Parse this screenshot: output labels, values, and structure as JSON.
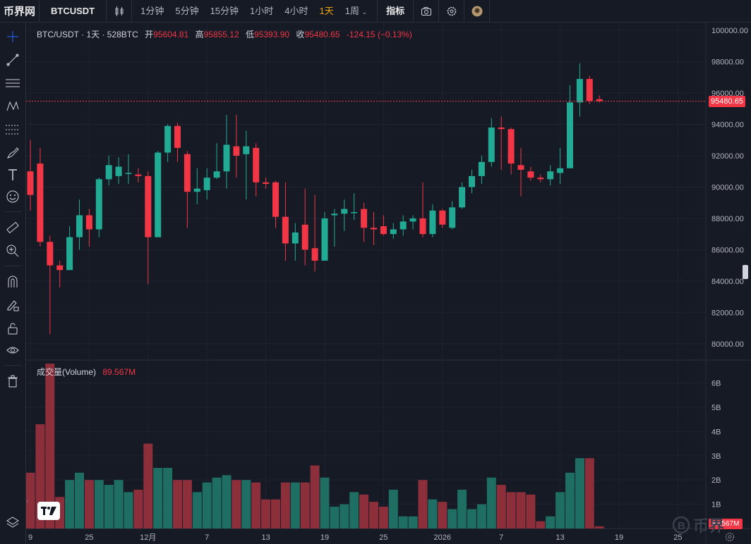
{
  "topbar": {
    "logo": "币界网",
    "symbol": "BTCUSDT",
    "intervals": [
      "1分钟",
      "5分钟",
      "15分钟",
      "1小时",
      "4小时",
      "1天",
      "1周"
    ],
    "active_interval": "1天",
    "indicators_label": "指标"
  },
  "legend": {
    "symbol": "BTC/USDT · 1天 · 528BTC",
    "open_label": "开",
    "open": "95604.81",
    "high_label": "高",
    "high": "95855.12",
    "low_label": "低",
    "low": "95393.90",
    "close_label": "收",
    "close": "95480.65",
    "change": "-124.15 (−0.13%)"
  },
  "volume_legend": {
    "label": "成交量(Volume)",
    "value": "89.567M"
  },
  "price_badge": "95480.65",
  "volume_badge": "89.567M",
  "watermark": "币界",
  "colors": {
    "up": "#22ab94",
    "down": "#f23645",
    "vol_up": "#1e6e63",
    "vol_down": "#8c2f3b",
    "bg": "#161a25",
    "grid": "#2a2e39"
  },
  "chart_data": {
    "type": "candlestick",
    "title": "BTC/USDT · 1天 · 528BTC",
    "price_axis": {
      "min": 79000,
      "max": 100500,
      "ticks": [
        "100000.00",
        "98000.00",
        "96000.00",
        "94000.00",
        "92000.00",
        "90000.00",
        "88000.00",
        "86000.00",
        "84000.00",
        "82000.00",
        "80000.00"
      ]
    },
    "volume_axis": {
      "min": 0,
      "max": 6.8,
      "unit": "B",
      "ticks": [
        "6B",
        "5B",
        "4B",
        "3B",
        "2B",
        "1B"
      ]
    },
    "x_ticks": [
      {
        "label": "9",
        "index": 0
      },
      {
        "label": "25",
        "index": 6
      },
      {
        "label": "12月",
        "index": 12
      },
      {
        "label": "7",
        "index": 18
      },
      {
        "label": "13",
        "index": 24
      },
      {
        "label": "19",
        "index": 30
      },
      {
        "label": "25",
        "index": 36
      },
      {
        "label": "2026",
        "index": 42
      },
      {
        "label": "7",
        "index": 48
      },
      {
        "label": "13",
        "index": 54
      },
      {
        "label": "19",
        "index": 60
      },
      {
        "label": "25",
        "index": 66
      }
    ],
    "candles": [
      {
        "o": 91000,
        "h": 93000,
        "l": 88500,
        "c": 89500,
        "v": 2.3
      },
      {
        "o": 91500,
        "h": 92500,
        "l": 86200,
        "c": 86500,
        "v": 4.3
      },
      {
        "o": 86500,
        "h": 86900,
        "l": 80600,
        "c": 85000,
        "v": 6.8
      },
      {
        "o": 85000,
        "h": 85300,
        "l": 83600,
        "c": 84700,
        "v": 1.3
      },
      {
        "o": 84700,
        "h": 87500,
        "l": 84700,
        "c": 86800,
        "v": 2.0
      },
      {
        "o": 86800,
        "h": 89200,
        "l": 86000,
        "c": 88200,
        "v": 2.3
      },
      {
        "o": 88200,
        "h": 88600,
        "l": 86200,
        "c": 87300,
        "v": 2.0
      },
      {
        "o": 87300,
        "h": 90600,
        "l": 86800,
        "c": 90500,
        "v": 2.0
      },
      {
        "o": 90500,
        "h": 92000,
        "l": 90100,
        "c": 91400,
        "v": 1.8
      },
      {
        "o": 90700,
        "h": 91900,
        "l": 90200,
        "c": 91300,
        "v": 2.0
      },
      {
        "o": 90900,
        "h": 92100,
        "l": 90200,
        "c": 90900,
        "v": 1.5
      },
      {
        "o": 90800,
        "h": 91200,
        "l": 90300,
        "c": 90700,
        "v": 1.6
      },
      {
        "o": 90700,
        "h": 91000,
        "l": 83800,
        "c": 86800,
        "v": 3.5
      },
      {
        "o": 86800,
        "h": 92300,
        "l": 86800,
        "c": 92200,
        "v": 2.5
      },
      {
        "o": 92200,
        "h": 94000,
        "l": 91600,
        "c": 93900,
        "v": 2.5
      },
      {
        "o": 93900,
        "h": 94100,
        "l": 91600,
        "c": 92500,
        "v": 2.0
      },
      {
        "o": 92100,
        "h": 92300,
        "l": 87400,
        "c": 89700,
        "v": 2.0
      },
      {
        "o": 89700,
        "h": 91200,
        "l": 88900,
        "c": 89900,
        "v": 1.5
      },
      {
        "o": 89800,
        "h": 91200,
        "l": 89200,
        "c": 90600,
        "v": 1.9
      },
      {
        "o": 90600,
        "h": 92800,
        "l": 90500,
        "c": 91000,
        "v": 2.1
      },
      {
        "o": 91000,
        "h": 94600,
        "l": 89900,
        "c": 92700,
        "v": 2.2
      },
      {
        "o": 92600,
        "h": 94600,
        "l": 90600,
        "c": 92000,
        "v": 2.0
      },
      {
        "o": 92100,
        "h": 93600,
        "l": 89200,
        "c": 92600,
        "v": 2.0
      },
      {
        "o": 92500,
        "h": 92800,
        "l": 89400,
        "c": 90300,
        "v": 1.9
      },
      {
        "o": 90300,
        "h": 90600,
        "l": 89900,
        "c": 90200,
        "v": 1.2
      },
      {
        "o": 90300,
        "h": 90400,
        "l": 87400,
        "c": 88100,
        "v": 1.2
      },
      {
        "o": 88100,
        "h": 90300,
        "l": 85300,
        "c": 86400,
        "v": 1.9
      },
      {
        "o": 86400,
        "h": 87700,
        "l": 85300,
        "c": 87100,
        "v": 1.9
      },
      {
        "o": 87600,
        "h": 89900,
        "l": 85000,
        "c": 86000,
        "v": 1.9
      },
      {
        "o": 86100,
        "h": 89500,
        "l": 84600,
        "c": 85300,
        "v": 2.6
      },
      {
        "o": 85300,
        "h": 88400,
        "l": 85300,
        "c": 88000,
        "v": 2.1
      },
      {
        "o": 88200,
        "h": 88600,
        "l": 86200,
        "c": 88300,
        "v": 0.9
      },
      {
        "o": 88300,
        "h": 89200,
        "l": 87200,
        "c": 88600,
        "v": 1.0
      },
      {
        "o": 88400,
        "h": 89600,
        "l": 87900,
        "c": 88400,
        "v": 1.5
      },
      {
        "o": 88600,
        "h": 89000,
        "l": 86500,
        "c": 87400,
        "v": 1.4
      },
      {
        "o": 87400,
        "h": 88400,
        "l": 86300,
        "c": 87300,
        "v": 1.1
      },
      {
        "o": 87500,
        "h": 88200,
        "l": 86900,
        "c": 87000,
        "v": 0.9
      },
      {
        "o": 87000,
        "h": 87700,
        "l": 86700,
        "c": 87300,
        "v": 1.6
      },
      {
        "o": 87300,
        "h": 88200,
        "l": 86900,
        "c": 87800,
        "v": 0.5
      },
      {
        "o": 87800,
        "h": 88200,
        "l": 87300,
        "c": 88000,
        "v": 0.5
      },
      {
        "o": 88000,
        "h": 90300,
        "l": 86800,
        "c": 87000,
        "v": 2.0
      },
      {
        "o": 87000,
        "h": 88900,
        "l": 86800,
        "c": 88500,
        "v": 1.2
      },
      {
        "o": 88500,
        "h": 88600,
        "l": 87400,
        "c": 87600,
        "v": 1.1
      },
      {
        "o": 87400,
        "h": 89100,
        "l": 87300,
        "c": 88700,
        "v": 0.8
      },
      {
        "o": 88700,
        "h": 90300,
        "l": 88600,
        "c": 90000,
        "v": 1.6
      },
      {
        "o": 90000,
        "h": 91100,
        "l": 89600,
        "c": 90700,
        "v": 0.8
      },
      {
        "o": 90700,
        "h": 92000,
        "l": 90200,
        "c": 91600,
        "v": 1.0
      },
      {
        "o": 91600,
        "h": 94400,
        "l": 91300,
        "c": 93800,
        "v": 2.1
      },
      {
        "o": 93800,
        "h": 94500,
        "l": 91100,
        "c": 93700,
        "v": 1.8
      },
      {
        "o": 93700,
        "h": 93800,
        "l": 90800,
        "c": 91500,
        "v": 1.5
      },
      {
        "o": 91400,
        "h": 92500,
        "l": 89400,
        "c": 91100,
        "v": 1.5
      },
      {
        "o": 91000,
        "h": 91300,
        "l": 90400,
        "c": 90600,
        "v": 1.4
      },
      {
        "o": 90600,
        "h": 90800,
        "l": 90300,
        "c": 90500,
        "v": 0.3
      },
      {
        "o": 90500,
        "h": 91400,
        "l": 90100,
        "c": 91000,
        "v": 0.5
      },
      {
        "o": 90900,
        "h": 92500,
        "l": 90200,
        "c": 91200,
        "v": 1.5
      },
      {
        "o": 91200,
        "h": 96500,
        "l": 91200,
        "c": 95400,
        "v": 2.3
      },
      {
        "o": 95400,
        "h": 97900,
        "l": 94500,
        "c": 96900,
        "v": 2.9
      },
      {
        "o": 96900,
        "h": 97100,
        "l": 95300,
        "c": 95500,
        "v": 2.9
      },
      {
        "o": 95604.81,
        "h": 95855.12,
        "l": 95393.9,
        "c": 95480.65,
        "v": 0.09
      }
    ]
  }
}
